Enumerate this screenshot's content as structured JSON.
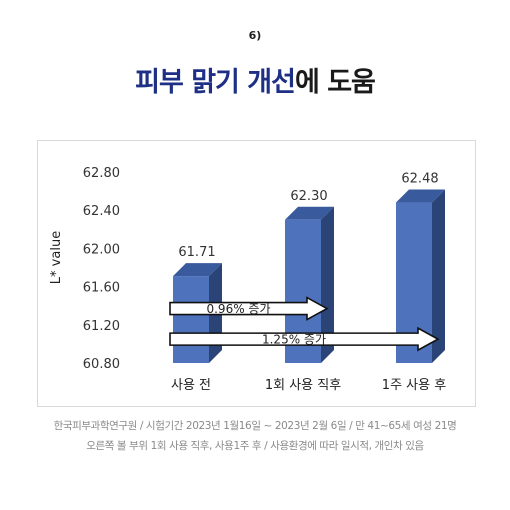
{
  "page": {
    "step": "6)",
    "title_accent": "피부 맑기 개선",
    "title_rest": "에 도움",
    "footnote_1": "한국피부과학연구원 / 시험기간 2023년 1월16일 ~ 2023년 2월 6일 / 만 41~65세 여성 21명",
    "footnote_2": "오른쪽 볼 부위 1회 사용 직후, 사용1주 후 / 사용환경에 따라 일시적, 개인차 있음"
  },
  "chart_data": {
    "type": "bar",
    "title": "",
    "xlabel": "",
    "ylabel": "L* value",
    "categories": [
      "사용 전",
      "1회 사용 직후",
      "1주 사용 후"
    ],
    "values": [
      61.71,
      62.3,
      62.48
    ],
    "value_labels": [
      "61.71",
      "62.30",
      "62.48"
    ],
    "ylim": [
      60.8,
      62.8
    ],
    "yticks": [
      60.8,
      61.2,
      61.6,
      62.0,
      62.4,
      62.8
    ],
    "ytick_labels": [
      "60.80",
      "61.20",
      "61.60",
      "62.00",
      "62.40",
      "62.80"
    ],
    "grid": false,
    "legend": "none",
    "bar_color": "#4f72bd",
    "bar_top_color": "#3a5a9e",
    "bar_side_color": "#2a4478",
    "annotations": [
      {
        "text": "0.96% 증가",
        "from_category": 0,
        "to_category": 1,
        "y": 61.37
      },
      {
        "text": "1.25% 증가",
        "from_category": 0,
        "to_category": 2,
        "y": 61.05
      }
    ]
  }
}
